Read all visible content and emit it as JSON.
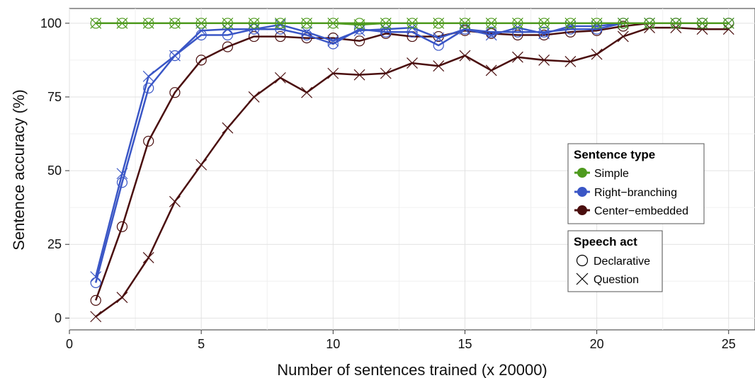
{
  "chart_data": {
    "type": "line",
    "xlabel": "Number of sentences trained (x 20000)",
    "ylabel": "Sentence accuracy (%)",
    "xlim": [
      0,
      26
    ],
    "ylim": [
      -4,
      105
    ],
    "x_ticks": [
      0,
      5,
      10,
      15,
      20,
      25
    ],
    "y_ticks": [
      0,
      25,
      50,
      75,
      100
    ],
    "x_tick_labels": [
      "0",
      "5",
      "10",
      "15",
      "20",
      "25"
    ],
    "y_tick_labels": [
      "0",
      "25",
      "50",
      "75",
      "100"
    ],
    "grid": true,
    "legend_position": "right",
    "x": [
      1,
      2,
      3,
      4,
      5,
      6,
      7,
      8,
      9,
      10,
      11,
      12,
      13,
      14,
      15,
      16,
      17,
      18,
      19,
      20,
      21,
      22,
      23,
      24,
      25
    ],
    "series": [
      {
        "type": "Simple",
        "act": "Declarative",
        "color": "#4e9a1e",
        "marker": "circle",
        "values": [
          100,
          100,
          100,
          100,
          100,
          100,
          100,
          100,
          100,
          100,
          100,
          100,
          100,
          100,
          100,
          100,
          100,
          100,
          100,
          100,
          100,
          100,
          100,
          100,
          100
        ]
      },
      {
        "type": "Simple",
        "act": "Question",
        "color": "#4e9a1e",
        "marker": "cross",
        "values": [
          100,
          100,
          100,
          100,
          100,
          100,
          100,
          100,
          100,
          100,
          99.5,
          100,
          100,
          100,
          100,
          100,
          100,
          100,
          100,
          100,
          100,
          100,
          100,
          100,
          100
        ]
      },
      {
        "type": "Right-branching",
        "act": "Declarative",
        "color": "#3a56c6",
        "marker": "circle",
        "values": [
          12,
          46,
          78,
          89,
          96,
          96,
          98,
          98,
          96,
          93,
          98,
          97,
          97,
          92.5,
          98,
          97,
          97,
          97,
          98,
          98,
          100,
          100,
          100,
          100,
          100
        ]
      },
      {
        "type": "Right-branching",
        "act": "Question",
        "color": "#3a56c6",
        "marker": "cross",
        "values": [
          14,
          49,
          82,
          89,
          97.5,
          98,
          98,
          99.5,
          97,
          94,
          97.5,
          98,
          98.5,
          95,
          98,
          96,
          98.5,
          96.5,
          99,
          99,
          100,
          100,
          100,
          100,
          100
        ]
      },
      {
        "type": "Center-embedded",
        "act": "Declarative",
        "color": "#4a0e0e",
        "marker": "circle",
        "values": [
          6,
          31,
          60,
          76.5,
          87.5,
          92,
          95.5,
          95.5,
          95,
          95,
          94,
          96.5,
          95.5,
          95.5,
          97.5,
          96.5,
          96,
          96,
          97,
          97.5,
          99,
          100,
          100,
          100,
          100
        ]
      },
      {
        "type": "Center-embedded",
        "act": "Question",
        "color": "#4a0e0e",
        "marker": "cross",
        "values": [
          0.5,
          7,
          20.5,
          39.5,
          52,
          64.5,
          75,
          81.5,
          76.5,
          83,
          82.5,
          83,
          86.5,
          85.5,
          89,
          84,
          88.5,
          87.5,
          87,
          89.5,
          95.5,
          98.5,
          98.5,
          98,
          98
        ]
      }
    ]
  },
  "legend": {
    "type_title": "Sentence type",
    "types": [
      {
        "label": "Simple",
        "color": "#4e9a1e"
      },
      {
        "label": "Right−branching",
        "color": "#3a56c6"
      },
      {
        "label": "Center−embedded",
        "color": "#4a0e0e"
      }
    ],
    "act_title": "Speech act",
    "acts": [
      {
        "label": "Declarative",
        "marker": "circle"
      },
      {
        "label": "Question",
        "marker": "cross"
      }
    ]
  }
}
